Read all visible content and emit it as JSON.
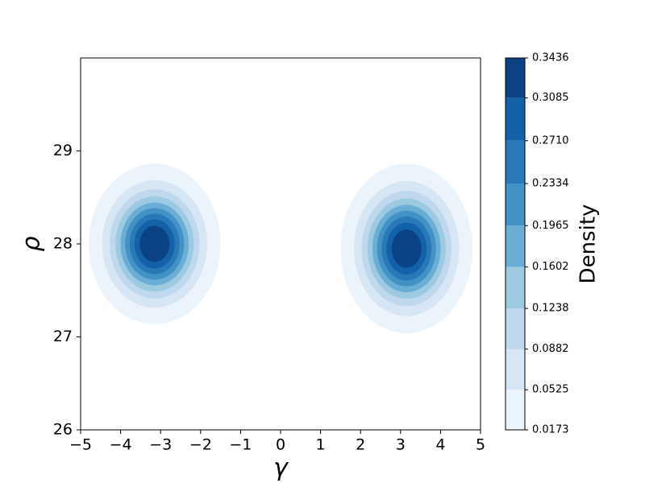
{
  "chart_data": {
    "type": "contour",
    "x_label": "γ",
    "y_label": "ρ",
    "colorbar_label": "Density",
    "xlim": [
      -5,
      5
    ],
    "xticks": [
      {
        "value": -5,
        "label": "−5"
      },
      {
        "value": -4,
        "label": "−4"
      },
      {
        "value": -3,
        "label": "−3"
      },
      {
        "value": -2,
        "label": "−2"
      },
      {
        "value": -1,
        "label": "−1"
      },
      0,
      1,
      2,
      3,
      4,
      5
    ],
    "ylim": [
      26,
      30
    ],
    "yticks": [
      26,
      27,
      28,
      29
    ],
    "levels": [
      0.0173,
      0.0525,
      0.0882,
      0.1238,
      0.1602,
      0.1965,
      0.2334,
      0.271,
      0.3085,
      0.3436
    ],
    "level_labels": [
      "0.0173",
      "0.0525",
      "0.0882",
      "0.1238",
      "0.1602",
      "0.1965",
      "0.2334",
      "0.2710",
      "0.3085",
      "0.3436"
    ],
    "colors": [
      "#ebf3fb",
      "#d6e6f4",
      "#bfd8ed",
      "#9ecae1",
      "#6aaed6",
      "#4292c6",
      "#2979b9",
      "#1361a9",
      "#0b4286"
    ],
    "components": [
      {
        "x": -3.15,
        "y": 28.0,
        "sx": 0.67,
        "sy": 0.35,
        "peak": 0.36
      },
      {
        "x": 3.15,
        "y": 27.95,
        "sx": 0.67,
        "sy": 0.37,
        "peak": 0.36
      }
    ]
  }
}
